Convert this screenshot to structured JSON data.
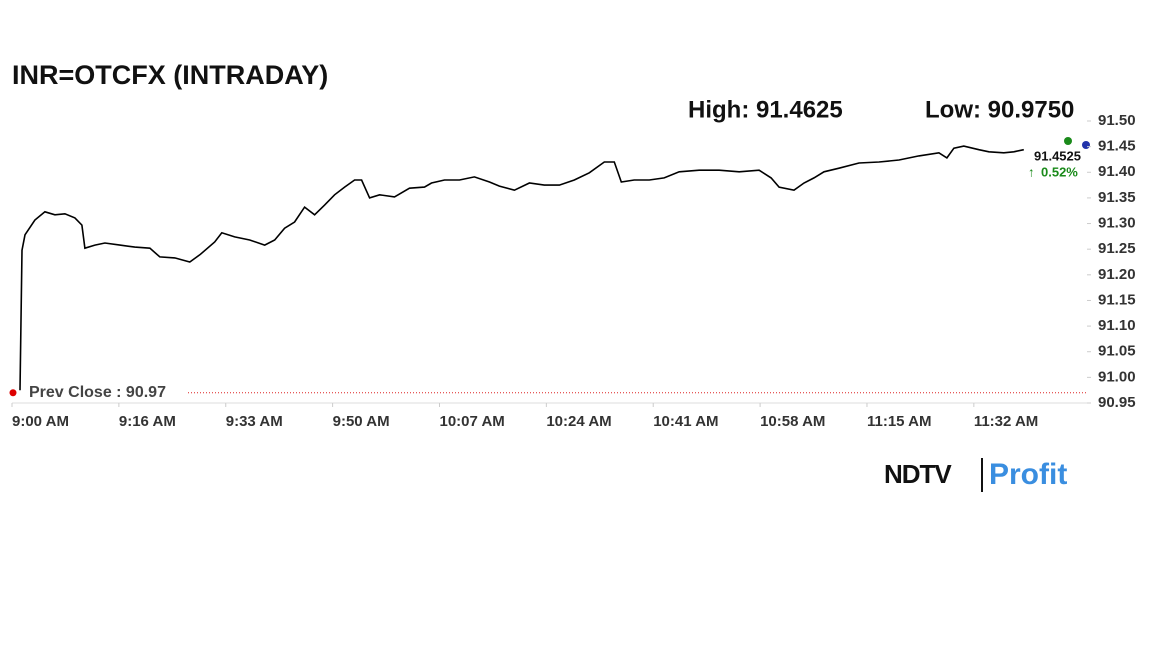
{
  "chart_data": {
    "type": "line",
    "title": "INR=OTCFX (INTRADAY)",
    "high_label": "High: 91.4625",
    "low_label": "Low: 90.9750",
    "prev_close": 90.97,
    "prev_close_label": "Prev Close : 90.97",
    "last_label": "91.4525",
    "change_label": "0.52%",
    "logo": [
      "NDTV",
      "Profit"
    ],
    "color": "#000000",
    "xlim": [
      540,
      711
    ],
    "xticks": [
      {
        "value": 540,
        "label": "9:00 AM"
      },
      {
        "value": 557,
        "label": "9:16 AM"
      },
      {
        "value": 574,
        "label": "9:33 AM"
      },
      {
        "value": 591,
        "label": "9:50 AM"
      },
      {
        "value": 608,
        "label": "10:07 AM"
      },
      {
        "value": 625,
        "label": "10:24 AM"
      },
      {
        "value": 642,
        "label": "10:41 AM"
      },
      {
        "value": 659,
        "label": "10:58 AM"
      },
      {
        "value": 676,
        "label": "11:15 AM"
      },
      {
        "value": 693,
        "label": "11:32 AM"
      }
    ],
    "ylim": [
      90.95,
      91.5
    ],
    "yticks": [
      90.95,
      {
        "value": 91.0,
        "label": "91.00"
      },
      91.05,
      {
        "value": 91.1,
        "label": "91.10"
      },
      91.15,
      {
        "value": 91.2,
        "label": "91.20"
      },
      91.25,
      {
        "value": 91.3,
        "label": "91.30"
      },
      91.35,
      {
        "value": 91.4,
        "label": "91.40"
      },
      91.45,
      {
        "value": 91.5,
        "label": "91.50"
      }
    ],
    "x": [
      541.27,
      541.59,
      542.07,
      543.65,
      545.24,
      546.83,
      548.42,
      550.01,
      551.12,
      551.6,
      553.19,
      554.78,
      557.16,
      559.54,
      561.93,
      563.51,
      565.9,
      568.28,
      569.87,
      572.25,
      573.37,
      575.43,
      577.81,
      580.2,
      581.79,
      583.37,
      584.96,
      586.55,
      588.14,
      589.73,
      591.32,
      592.91,
      594.5,
      595.61,
      596.88,
      598.47,
      600.85,
      603.23,
      605.62,
      606.73,
      608.8,
      611.18,
      613.56,
      615.95,
      617.53,
      619.92,
      622.3,
      624.68,
      627.07,
      629.45,
      631.83,
      634.22,
      635.8,
      636.92,
      638.98,
      641.37,
      643.75,
      646.13,
      649.31,
      652.49,
      655.67,
      658.84,
      660.75,
      662.02,
      664.4,
      665.99,
      667.58,
      669.17,
      671.55,
      674.73,
      677.91,
      681.09,
      684.26,
      687.44,
      688.71,
      689.83,
      691.41,
      693.8,
      695.39,
      697.77,
      699.36,
      700.95
    ],
    "values": [
      90.975,
      91.248,
      91.278,
      91.307,
      91.323,
      91.317,
      91.319,
      91.311,
      91.297,
      91.252,
      91.258,
      91.262,
      91.258,
      91.254,
      91.252,
      91.235,
      91.233,
      91.225,
      91.239,
      91.264,
      91.282,
      91.274,
      91.268,
      91.258,
      91.268,
      91.291,
      91.303,
      91.332,
      91.317,
      91.336,
      91.356,
      91.371,
      91.385,
      91.385,
      91.35,
      91.356,
      91.352,
      91.369,
      91.371,
      91.379,
      91.385,
      91.385,
      91.391,
      91.381,
      91.373,
      91.365,
      91.379,
      91.375,
      91.375,
      91.385,
      91.399,
      91.42,
      91.42,
      91.381,
      91.385,
      91.385,
      91.389,
      91.401,
      91.404,
      91.404,
      91.401,
      91.404,
      91.389,
      91.371,
      91.365,
      91.379,
      91.389,
      91.401,
      91.408,
      91.418,
      91.42,
      91.424,
      91.432,
      91.438,
      91.428,
      91.447,
      91.451,
      91.444,
      91.44,
      91.438,
      91.44,
      91.444
    ]
  }
}
